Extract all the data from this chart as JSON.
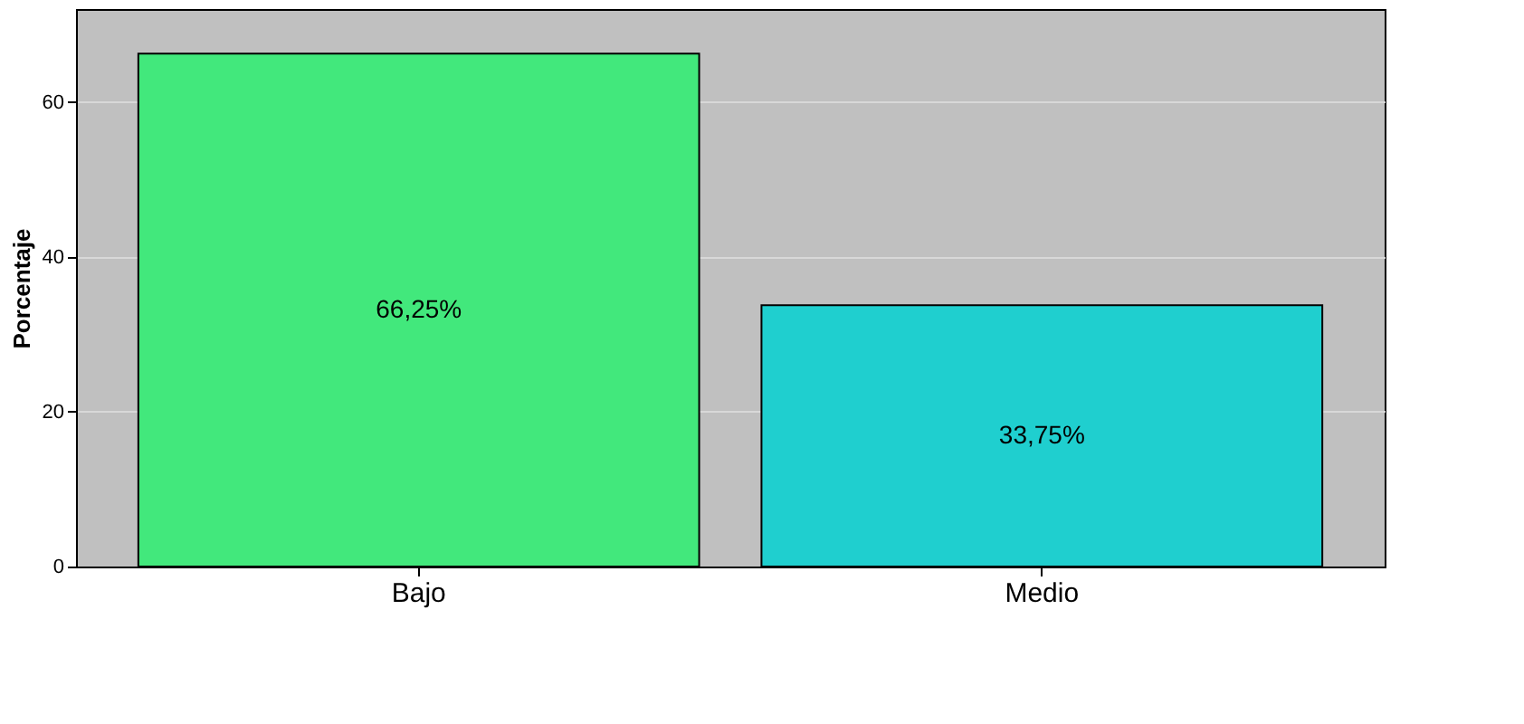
{
  "chart_data": {
    "type": "bar",
    "ylabel": "Porcentaje",
    "categories": [
      "Bajo",
      "Medio"
    ],
    "values": [
      66.25,
      33.75
    ],
    "colors": [
      "#42e87c",
      "#1fcfcf"
    ],
    "value_labels": [
      "66,25%",
      "33,75%"
    ],
    "ylim": [
      0,
      72
    ],
    "yticks": [
      0,
      20,
      40,
      60
    ],
    "grid": "y"
  }
}
